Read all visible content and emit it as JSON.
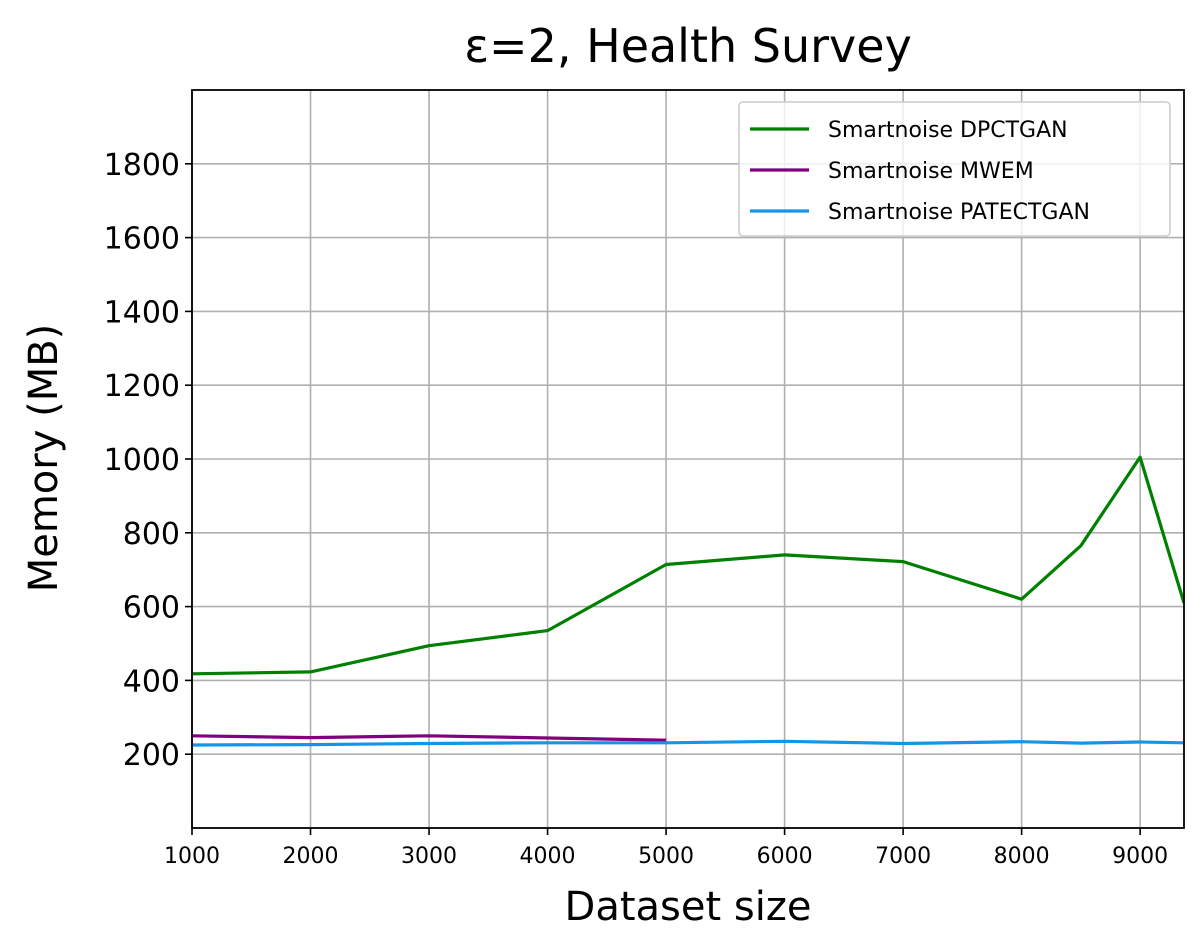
{
  "chart_data": {
    "type": "line",
    "title": "ε=2, Health Survey",
    "xlabel": "Dataset size",
    "ylabel": "Memory (MB)",
    "xlim": [
      1000,
      9370
    ],
    "ylim": [
      0,
      2000
    ],
    "xticks": [
      1000,
      2000,
      3000,
      4000,
      5000,
      6000,
      7000,
      8000,
      9000
    ],
    "yticks": [
      200,
      400,
      600,
      800,
      1000,
      1200,
      1400,
      1600,
      1800
    ],
    "grid": true,
    "legend_position": "top-right",
    "series": [
      {
        "name": "Smartnoise DPCTGAN",
        "color": "#008000",
        "x": [
          1000,
          2000,
          3000,
          4000,
          5000,
          6000,
          7000,
          8000,
          8500,
          9000,
          9370
        ],
        "y": [
          418,
          423,
          494,
          535,
          714,
          740,
          722,
          620,
          765,
          1005,
          610
        ]
      },
      {
        "name": "Smartnoise MWEM",
        "color": "#800080",
        "x": [
          1000,
          2000,
          3000,
          4000,
          5000
        ],
        "y": [
          250,
          245,
          250,
          244,
          238
        ]
      },
      {
        "name": "Smartnoise PATECTGAN",
        "color": "#1496e6",
        "x": [
          1000,
          2000,
          3000,
          4000,
          5000,
          6000,
          7000,
          8000,
          8500,
          9000,
          9370
        ],
        "y": [
          225,
          226,
          229,
          231,
          231,
          235,
          229,
          234,
          230,
          233,
          231
        ]
      }
    ]
  }
}
